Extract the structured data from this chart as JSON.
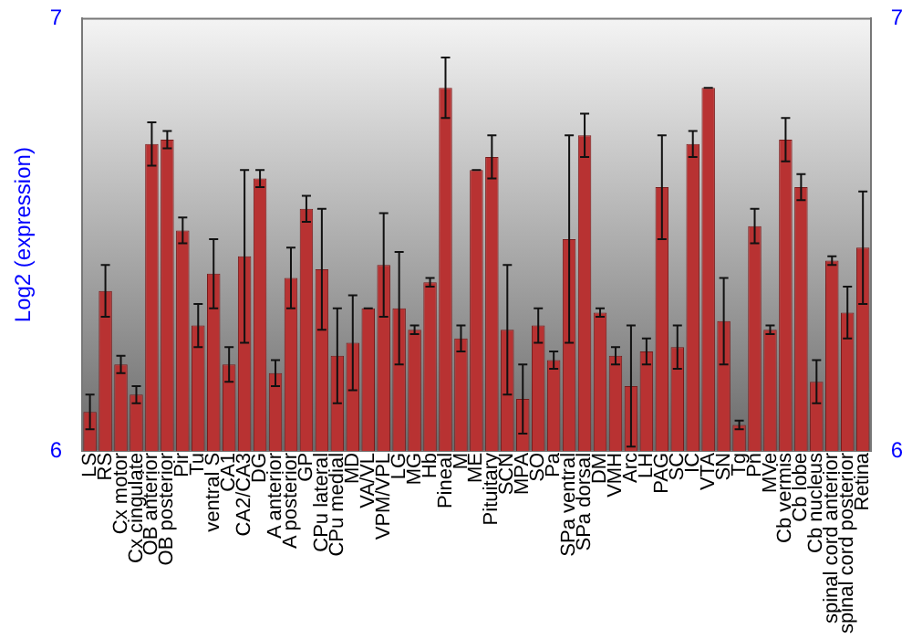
{
  "chart_data": {
    "type": "bar",
    "ylabel": "Log2 (expression)",
    "categories": [
      "LS",
      "RS",
      "Cx motor",
      "Cx cingulate",
      "OB anterior",
      "OB posterior",
      "Pir",
      "Tu",
      "ventral S",
      "CA1",
      "CA2/CA3",
      "DG",
      "A anterior",
      "A posterior",
      "GP",
      "CPu lateral",
      "CPu medial",
      "MD",
      "VA/VL",
      "VPM/VPL",
      "LG",
      "MG",
      "Hb",
      "Pineal",
      "M",
      "ME",
      "Pituitary",
      "SCN",
      "MPA",
      "SO",
      "Pa",
      "SPa ventral",
      "SPa dorsal",
      "DM",
      "VMH",
      "Arc",
      "LH",
      "PAG",
      "SC",
      "IC",
      "VTA",
      "SN",
      "Tg",
      "Pn",
      "MVe",
      "Cb vermis",
      "Cb lobe",
      "Cb nucleus",
      "spinal cord anterior",
      "spinal cord posterior",
      "Retina"
    ],
    "values": [
      6.09,
      6.37,
      6.2,
      6.13,
      6.71,
      6.72,
      6.51,
      6.29,
      6.41,
      6.2,
      6.45,
      6.63,
      6.18,
      6.4,
      6.56,
      6.42,
      6.22,
      6.25,
      6.33,
      6.43,
      6.33,
      6.28,
      6.39,
      6.84,
      6.26,
      6.65,
      6.68,
      6.28,
      6.12,
      6.29,
      6.21,
      6.49,
      6.73,
      6.32,
      6.22,
      6.15,
      6.23,
      6.61,
      6.24,
      6.71,
      6.84,
      6.3,
      6.06,
      6.52,
      6.28,
      6.72,
      6.61,
      6.16,
      6.44,
      6.32,
      6.47
    ],
    "errors": [
      0.04,
      0.06,
      0.02,
      0.02,
      0.05,
      0.02,
      0.03,
      0.05,
      0.08,
      0.04,
      0.2,
      0.02,
      0.03,
      0.07,
      0.03,
      0.14,
      0.11,
      0.11,
      0,
      0.12,
      0.13,
      0.01,
      0.01,
      0.07,
      0.03,
      0,
      0.05,
      0.15,
      0.08,
      0.04,
      0.02,
      0.24,
      0.05,
      0.01,
      0.02,
      0.14,
      0.03,
      0.12,
      0.05,
      0.03,
      0,
      0.1,
      0.01,
      0.04,
      0.01,
      0.05,
      0.03,
      0.05,
      0.01,
      0.06,
      0.13
    ],
    "color": "#b83232",
    "ylim": [
      6,
      7
    ],
    "yticks": [
      6,
      7
    ],
    "y2lim": [
      6,
      7
    ],
    "y2ticks": [
      6,
      7
    ],
    "grid": false,
    "legend": false
  }
}
